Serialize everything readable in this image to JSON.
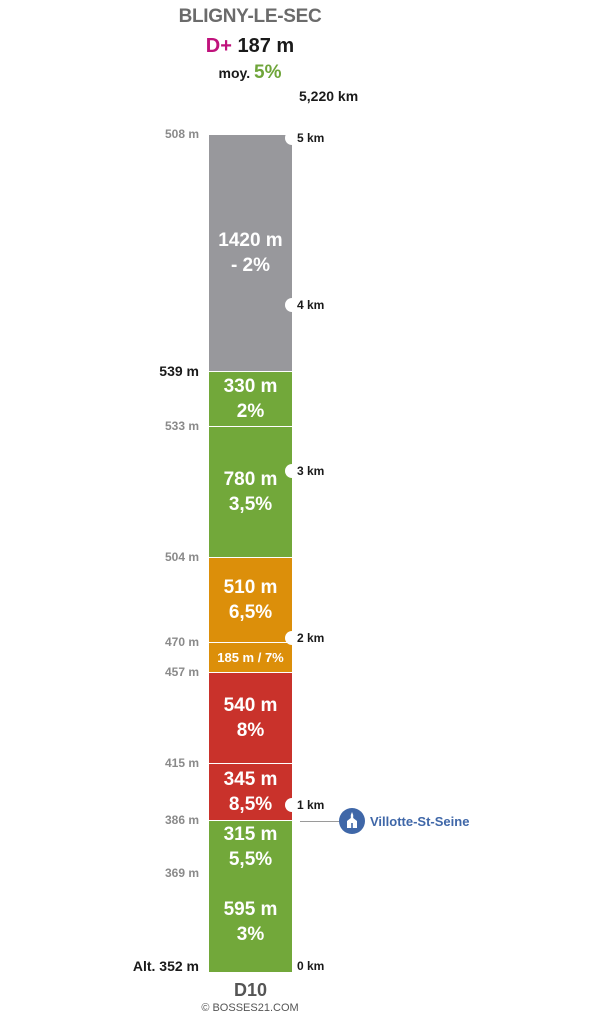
{
  "header": {
    "title": "BLIGNY-LE-SEC",
    "dplus_prefix": "D+",
    "dplus_value": "187 m",
    "moy_prefix": "moy.",
    "moy_value": "5%",
    "total_distance": "5,220 km"
  },
  "chart_data": {
    "type": "bar",
    "title": "BLIGNY-LE-SEC",
    "orientation": "vertical-stacked-profile",
    "total_length_km": 5.22,
    "elevation_gain_m": 187,
    "average_grade_percent": 5,
    "segments": [
      {
        "length_label": "595 m",
        "grade_label": "3%",
        "length_m": 595,
        "grade_percent": 3,
        "color": "#72a83a"
      },
      {
        "length_label": "315 m",
        "grade_label": "5,5%",
        "length_m": 315,
        "grade_percent": 5.5,
        "color": "#72a83a"
      },
      {
        "length_label": "345 m",
        "grade_label": "8,5%",
        "length_m": 345,
        "grade_percent": 8.5,
        "color": "#c9322b"
      },
      {
        "length_label": "540 m",
        "grade_label": "8%",
        "length_m": 540,
        "grade_percent": 8,
        "color": "#c9322b"
      },
      {
        "length_label": "185 m / 7%",
        "grade_label": "",
        "length_m": 185,
        "grade_percent": 7,
        "color": "#dc8f0a",
        "small": true
      },
      {
        "length_label": "510 m",
        "grade_label": "6,5%",
        "length_m": 510,
        "grade_percent": 6.5,
        "color": "#dc8f0a"
      },
      {
        "length_label": "780 m",
        "grade_label": "3,5%",
        "length_m": 780,
        "grade_percent": 3.5,
        "color": "#72a83a"
      },
      {
        "length_label": "330 m",
        "grade_label": "2%",
        "length_m": 330,
        "grade_percent": 2,
        "color": "#72a83a"
      },
      {
        "length_label": "1420 m",
        "grade_label": "- 2%",
        "length_m": 1420,
        "grade_percent": -2,
        "color": "#98989c"
      }
    ],
    "altitudes": [
      {
        "label": "Alt. 352 m",
        "value": 352,
        "strong": true
      },
      {
        "label": "369 m",
        "value": 369
      },
      {
        "label": "386 m",
        "value": 386
      },
      {
        "label": "415 m",
        "value": 415
      },
      {
        "label": "457 m",
        "value": 457
      },
      {
        "label": "470 m",
        "value": 470
      },
      {
        "label": "504 m",
        "value": 504
      },
      {
        "label": "533  m",
        "value": 533
      },
      {
        "label": "539 m",
        "value": 539,
        "strong": true
      },
      {
        "label": "508 m",
        "value": 508
      }
    ],
    "km_markers": [
      {
        "label": "0 km",
        "km": 0,
        "notch": false
      },
      {
        "label": "1 km",
        "km": 1,
        "notch": true
      },
      {
        "label": "2 km",
        "km": 2,
        "notch": true
      },
      {
        "label": "3 km",
        "km": 3,
        "notch": true
      },
      {
        "label": "4 km",
        "km": 4,
        "notch": true
      },
      {
        "label": "5 km",
        "km": 5,
        "notch": true
      }
    ],
    "poi": {
      "label": "Villotte-St-Seine"
    }
  },
  "footer": {
    "road": "D10",
    "copyright": "© BOSSES21.COM"
  }
}
